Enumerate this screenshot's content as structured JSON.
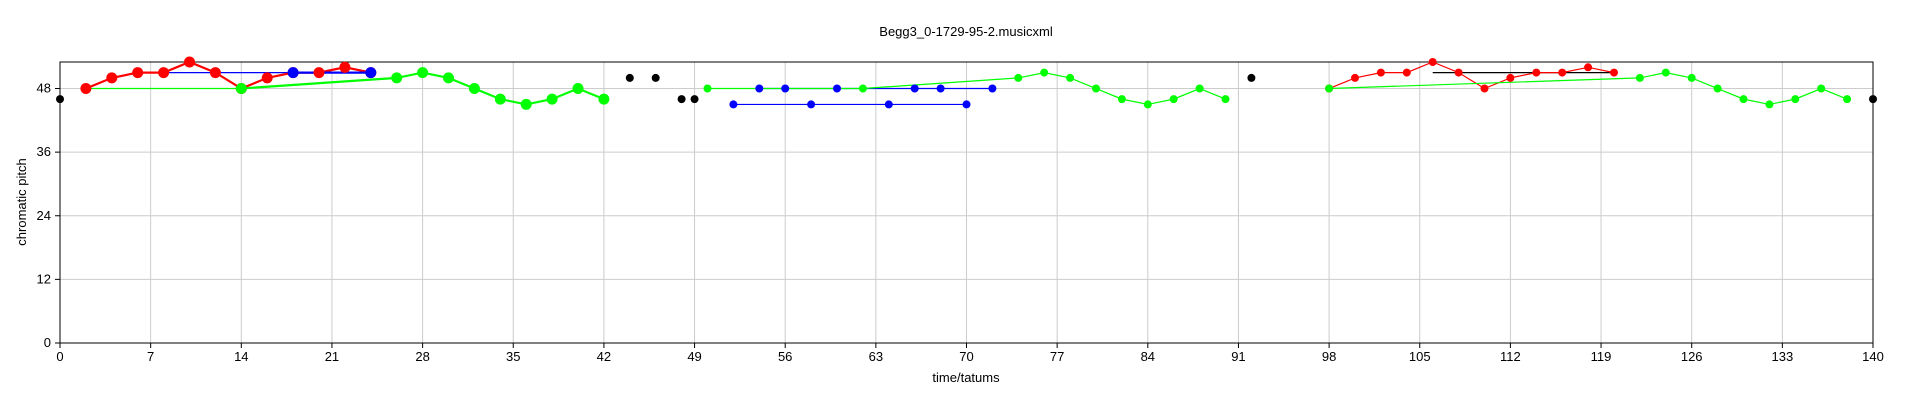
{
  "chart_data": {
    "type": "scatter",
    "title": "Begg3_0-1729-95-2.musicxml",
    "xlabel": "time/tatums",
    "ylabel": "chromatic pitch",
    "xlim": [
      0,
      140
    ],
    "ylim": [
      0,
      53
    ],
    "xticks": [
      0,
      7,
      14,
      21,
      28,
      35,
      42,
      49,
      56,
      63,
      70,
      77,
      84,
      91,
      98,
      105,
      112,
      119,
      126,
      133,
      140
    ],
    "yticks": [
      0,
      12,
      24,
      36,
      48
    ],
    "grid": true,
    "colors": {
      "red": "#ff0000",
      "blue": "#0000ff",
      "green": "#00ff00",
      "black": "#000000",
      "grid": "#cccccc"
    },
    "series": [
      {
        "color": "red",
        "marker": "large",
        "points": [
          [
            2,
            48
          ],
          [
            4,
            50
          ],
          [
            6,
            51
          ],
          [
            8,
            51
          ],
          [
            10,
            53
          ],
          [
            12,
            51
          ],
          [
            14,
            48
          ],
          [
            16,
            50
          ],
          [
            18,
            51
          ],
          [
            20,
            51
          ],
          [
            22,
            52
          ],
          [
            24,
            51
          ]
        ]
      },
      {
        "color": "red",
        "marker": "small",
        "points": [
          [
            98,
            48
          ],
          [
            100,
            50
          ],
          [
            102,
            51
          ],
          [
            104,
            51
          ],
          [
            106,
            53
          ],
          [
            108,
            51
          ],
          [
            110,
            48
          ],
          [
            112,
            50
          ],
          [
            114,
            51
          ],
          [
            116,
            51
          ],
          [
            118,
            52
          ],
          [
            120,
            51
          ]
        ]
      },
      {
        "color": "blue",
        "marker": "large",
        "points": [
          [
            18,
            51
          ],
          [
            24,
            51
          ]
        ]
      },
      {
        "color": "blue",
        "marker": "small",
        "points": [
          [
            54,
            48
          ],
          [
            56,
            48
          ],
          [
            60,
            48
          ],
          [
            66,
            48
          ],
          [
            68,
            48
          ],
          [
            72,
            48
          ]
        ]
      },
      {
        "color": "blue",
        "marker": "small",
        "points": [
          [
            52,
            45
          ],
          [
            58,
            45
          ],
          [
            64,
            45
          ],
          [
            70,
            45
          ]
        ]
      },
      {
        "color": "green",
        "marker": "large",
        "points": [
          [
            14,
            48
          ],
          [
            26,
            50
          ],
          [
            28,
            51
          ],
          [
            30,
            50
          ],
          [
            32,
            48
          ],
          [
            34,
            46
          ],
          [
            36,
            45
          ],
          [
            38,
            46
          ],
          [
            40,
            48
          ],
          [
            42,
            46
          ]
        ]
      },
      {
        "color": "green",
        "marker": "small",
        "points": [
          [
            50,
            48
          ],
          [
            62,
            48
          ],
          [
            74,
            50
          ],
          [
            76,
            51
          ],
          [
            78,
            50
          ],
          [
            80,
            48
          ],
          [
            82,
            46
          ],
          [
            84,
            45
          ],
          [
            86,
            46
          ],
          [
            88,
            48
          ],
          [
            90,
            46
          ]
        ]
      },
      {
        "color": "green",
        "marker": "small",
        "points": [
          [
            98,
            48
          ],
          [
            122,
            50
          ],
          [
            124,
            51
          ],
          [
            126,
            50
          ],
          [
            128,
            48
          ],
          [
            130,
            46
          ],
          [
            132,
            45
          ],
          [
            134,
            46
          ],
          [
            136,
            48
          ],
          [
            138,
            46
          ]
        ]
      },
      {
        "color": "black",
        "marker": "small",
        "points": [
          [
            0,
            46
          ],
          [
            44,
            50
          ],
          [
            46,
            50
          ],
          [
            48,
            46
          ],
          [
            49,
            46
          ],
          [
            92,
            50
          ],
          [
            140,
            46
          ]
        ]
      }
    ],
    "lines": [
      {
        "color": "green",
        "from": [
          2,
          48
        ],
        "to": [
          14,
          48
        ]
      },
      {
        "color": "blue",
        "from": [
          8,
          51
        ],
        "to": [
          24,
          51
        ]
      },
      {
        "color": "black",
        "from": [
          106,
          51
        ],
        "to": [
          120,
          51
        ]
      }
    ]
  }
}
